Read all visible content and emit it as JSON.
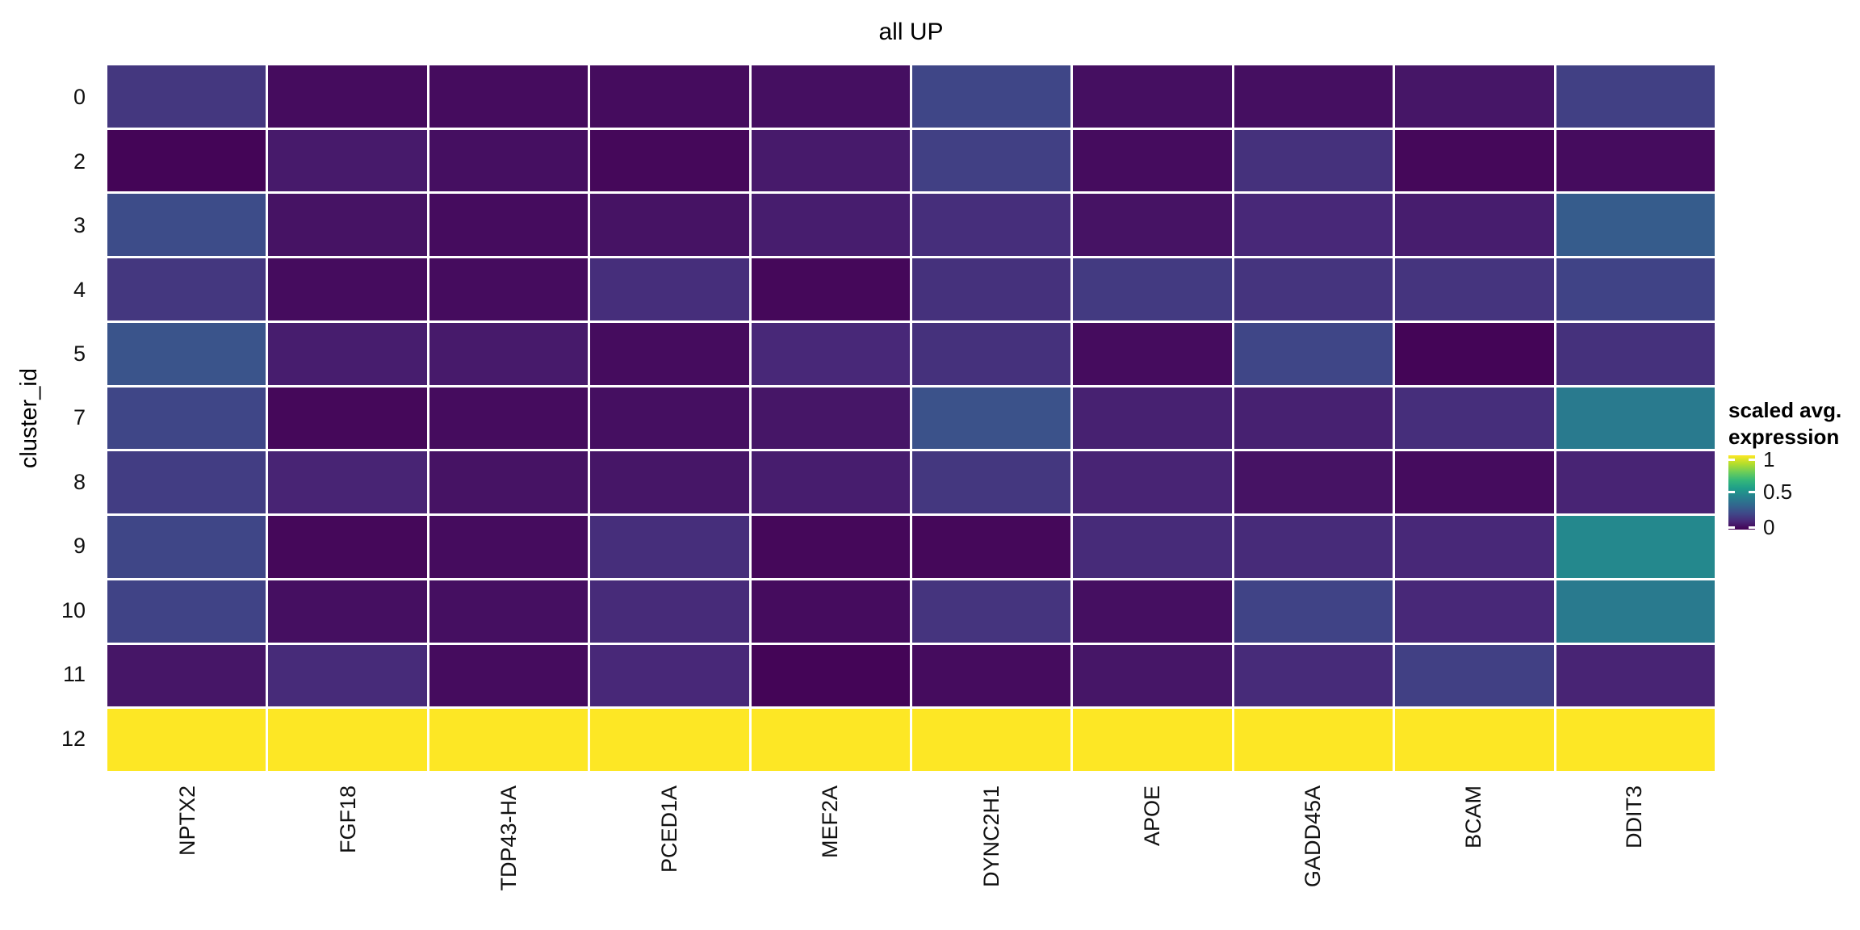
{
  "title": "all UP",
  "y_axis": {
    "label": "cluster_id",
    "ticks": [
      "0",
      "2",
      "3",
      "4",
      "5",
      "7",
      "8",
      "9",
      "10",
      "11",
      "12"
    ]
  },
  "x_axis": {
    "ticks": [
      "NPTX2",
      "FGF18",
      "TDP43-HA",
      "PCED1A",
      "MEF2A",
      "DYNC2H1",
      "APOE",
      "GADD45A",
      "BCAM",
      "DDIT3"
    ]
  },
  "legend": {
    "title_line1": "scaled avg.",
    "title_line2": "expression",
    "tick_labels": [
      "1",
      "0.5",
      "0"
    ],
    "tick_values": [
      1,
      0.5,
      0
    ]
  },
  "colors": {
    "background": "#ffffff",
    "grid_line": "#ffffff",
    "text": "#000000",
    "viridis_stops": [
      "#440154",
      "#482878",
      "#3e4a89",
      "#31688e",
      "#26828e",
      "#1f9e89",
      "#35b779",
      "#6ece58",
      "#b5de2b",
      "#fde725"
    ]
  },
  "chart_data": {
    "type": "heatmap",
    "title": "all UP",
    "xlabel": "",
    "ylabel": "cluster_id",
    "legend_title": "scaled avg. expression",
    "colorscale": "viridis",
    "value_domain": [
      0,
      1
    ],
    "columns": [
      "NPTX2",
      "FGF18",
      "TDP43-HA",
      "PCED1A",
      "MEF2A",
      "DYNC2H1",
      "APOE",
      "GADD45A",
      "BCAM",
      "DDIT3"
    ],
    "rows": [
      "0",
      "2",
      "3",
      "4",
      "5",
      "7",
      "8",
      "9",
      "10",
      "11",
      "12"
    ],
    "values": [
      [
        0.16,
        0.03,
        0.03,
        0.03,
        0.04,
        0.21,
        0.04,
        0.04,
        0.06,
        0.19
      ],
      [
        0.01,
        0.07,
        0.04,
        0.02,
        0.07,
        0.19,
        0.03,
        0.14,
        0.02,
        0.03
      ],
      [
        0.23,
        0.05,
        0.03,
        0.05,
        0.08,
        0.13,
        0.05,
        0.11,
        0.08,
        0.29
      ],
      [
        0.16,
        0.03,
        0.03,
        0.13,
        0.02,
        0.14,
        0.17,
        0.15,
        0.15,
        0.2
      ],
      [
        0.26,
        0.08,
        0.07,
        0.03,
        0.11,
        0.14,
        0.03,
        0.21,
        0.01,
        0.14
      ],
      [
        0.21,
        0.02,
        0.03,
        0.04,
        0.06,
        0.25,
        0.09,
        0.09,
        0.13,
        0.41
      ],
      [
        0.18,
        0.1,
        0.05,
        0.06,
        0.08,
        0.16,
        0.1,
        0.05,
        0.03,
        0.1
      ],
      [
        0.21,
        0.02,
        0.03,
        0.13,
        0.02,
        0.02,
        0.12,
        0.12,
        0.11,
        0.47
      ],
      [
        0.2,
        0.04,
        0.04,
        0.12,
        0.03,
        0.15,
        0.04,
        0.2,
        0.11,
        0.41
      ],
      [
        0.06,
        0.12,
        0.03,
        0.11,
        0.01,
        0.03,
        0.06,
        0.12,
        0.19,
        0.1
      ],
      [
        1,
        1,
        1,
        1,
        1,
        1,
        1,
        1,
        1,
        1
      ]
    ]
  }
}
